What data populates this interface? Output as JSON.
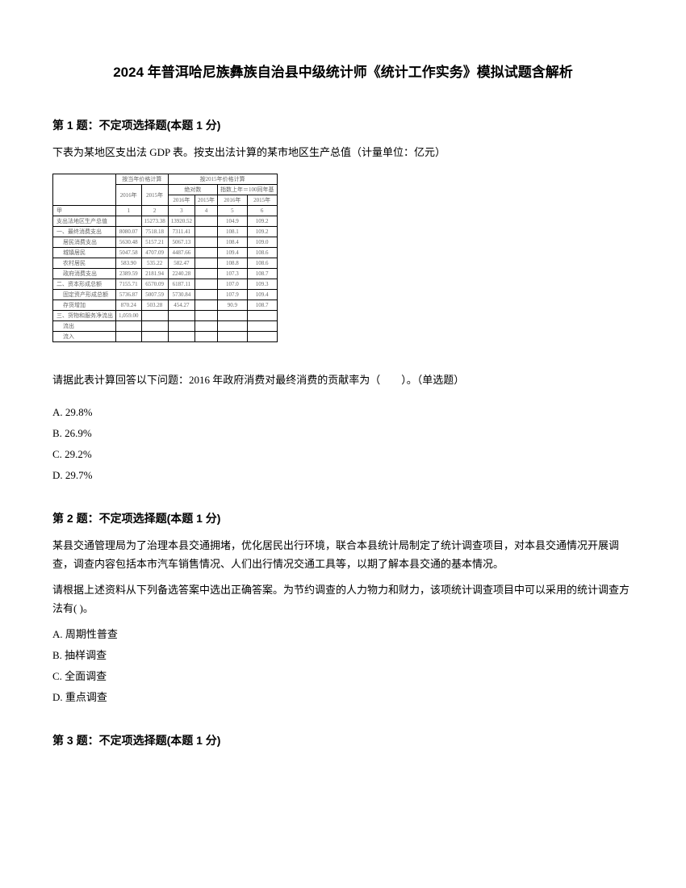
{
  "pageTitle": "2024 年普洱哈尼族彝族自治县中级统计师《统计工作实务》模拟试题含解析",
  "q1": {
    "header": "第 1 题：不定项选择题(本题 1 分)",
    "intro": "下表为某地区支出法 GDP 表。按支出法计算的某市地区生产总值（计量单位：亿元）",
    "prompt": "请据此表计算回答以下问题：2016 年政府消费对最终消费的贡献率为（　　）。（单选题）",
    "optA": "A. 29.8%",
    "optB": "B. 26.9%",
    "optC": "C. 29.2%",
    "optD": "D. 29.7%"
  },
  "table": {
    "colHeaders": {
      "blank": "",
      "topGroup1": "按当年价格计算",
      "topGroup2": "按2015年价格计算",
      "year2016": "2016年",
      "year2015": "2015年",
      "sub1": "绝对数",
      "sub2": "指数上年＝100同年基",
      "y2016a": "2016年",
      "y2015a": "2015年",
      "y2016b": "2016年",
      "y2015b": "2015年",
      "num1": "1",
      "num2": "2",
      "num3": "3",
      "num4": "4",
      "num5": "5",
      "num6": "6",
      "jia": "甲"
    },
    "rows": [
      {
        "label": "支出法地区生产总值",
        "v1": "",
        "v2": "15273.38",
        "v3": "13920.52",
        "v4": "",
        "v5": "104.9",
        "v6": "109.2"
      },
      {
        "label": "一、最终消费支出",
        "v1": "8080.07",
        "v2": "7518.18",
        "v3": "7311.41",
        "v4": "",
        "v5": "108.1",
        "v6": "109.2"
      },
      {
        "label": "居民消费支出",
        "indent": true,
        "v1": "5630.48",
        "v2": "5157.21",
        "v3": "5067.13",
        "v4": "",
        "v5": "108.4",
        "v6": "109.0"
      },
      {
        "label": "城镇居民",
        "indent": true,
        "v1": "5047.58",
        "v2": "4707.09",
        "v3": "4487.66",
        "v4": "",
        "v5": "109.4",
        "v6": "108.6"
      },
      {
        "label": "农村居民",
        "indent": true,
        "v1": "583.90",
        "v2": "535.22",
        "v3": "582.47",
        "v4": "",
        "v5": "108.8",
        "v6": "108.6"
      },
      {
        "label": "政府消费支出",
        "indent": true,
        "v1": "2389.59",
        "v2": "2181.94",
        "v3": "2240.28",
        "v4": "",
        "v5": "107.3",
        "v6": "108.7"
      },
      {
        "label": "二、资本形成总额",
        "v1": "7155.71",
        "v2": "6570.09",
        "v3": "6187.11",
        "v4": "",
        "v5": "107.0",
        "v6": "109.3"
      },
      {
        "label": "固定资产形成总额",
        "indent": true,
        "v1": "5736.87",
        "v2": "5007.59",
        "v3": "5730.84",
        "v4": "",
        "v5": "107.9",
        "v6": "109.4"
      },
      {
        "label": "存货增加",
        "indent": true,
        "v1": "870.24",
        "v2": "503.28",
        "v3": "454.27",
        "v4": "",
        "v5": "90.9",
        "v6": "108.7"
      },
      {
        "label": "三、货物和服务净流出",
        "v1": "1,059.00",
        "v2": "",
        "v3": "",
        "v4": "",
        "v5": "",
        "v6": ""
      },
      {
        "label": "流出",
        "indent": true,
        "v1": "",
        "v2": "",
        "v3": "",
        "v4": "",
        "v5": "",
        "v6": ""
      },
      {
        "label": "流入",
        "indent": true,
        "v1": "",
        "v2": "",
        "v3": "",
        "v4": "",
        "v5": "",
        "v6": ""
      }
    ]
  },
  "q2": {
    "header": "第 2 题：不定项选择题(本题 1 分)",
    "intro1": "某县交通管理局为了治理本县交通拥堵，优化居民出行环境，联合本县统计局制定了统计调查项目，对本县交通情况开展调查，调查内容包括本市汽车销售情况、人们出行情况交通工具等，以期了解本县交通的基本情况。",
    "intro2": "请根据上述资料从下列备选答案中选出正确答案。为节约调查的人力物力和财力，该项统计调查项目中可以采用的统计调查方法有( )。",
    "optA": "A. 周期性普查",
    "optB": "B. 抽样调查",
    "optC": "C. 全面调查",
    "optD": "D. 重点调查"
  },
  "q3": {
    "header": "第 3 题：不定项选择题(本题 1 分)"
  }
}
